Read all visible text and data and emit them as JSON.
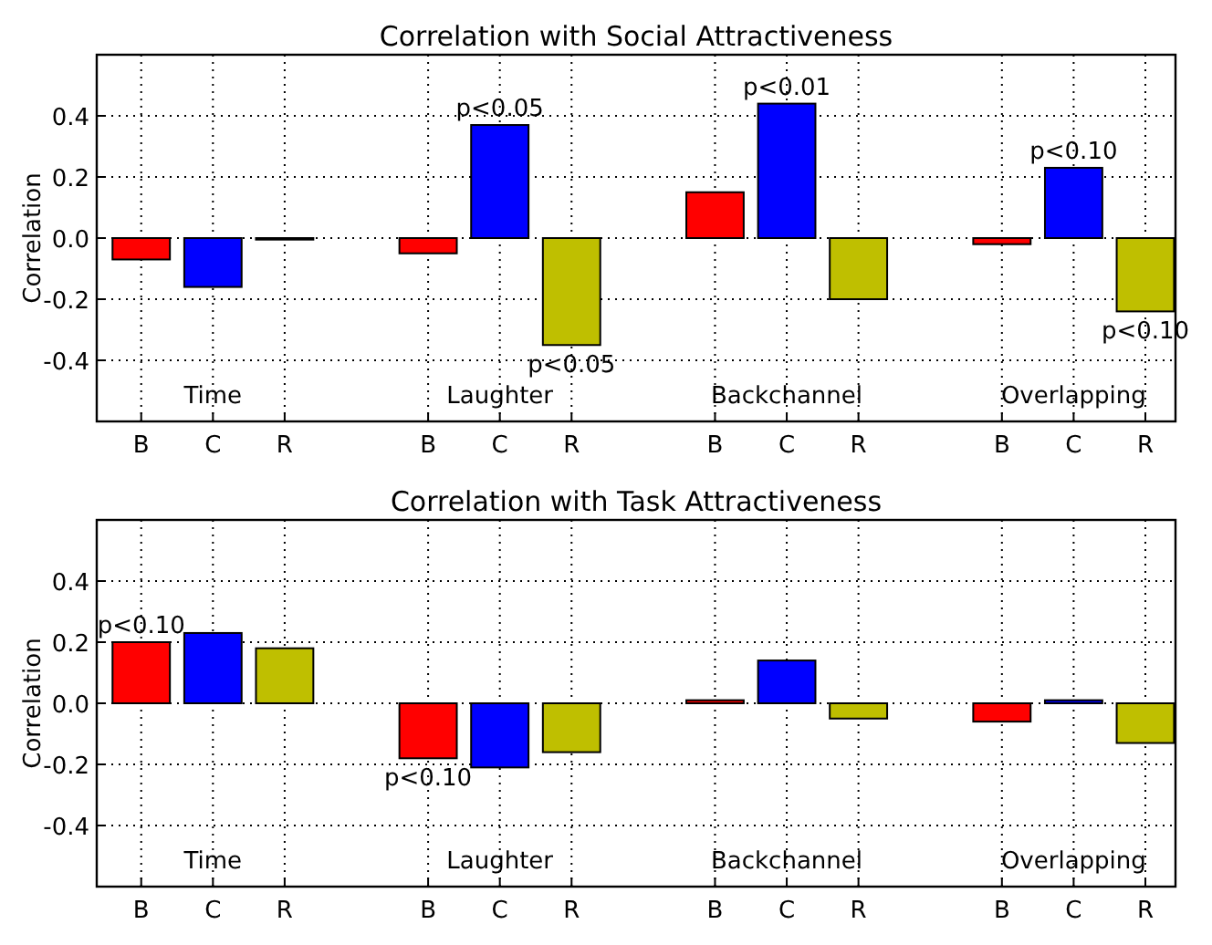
{
  "chart_data": [
    {
      "type": "bar",
      "title": "Correlation with Social Attractiveness",
      "ylabel": "Correlation",
      "categories": [
        "B",
        "C",
        "R",
        null,
        "B",
        "C",
        "R",
        null,
        "B",
        "C",
        "R",
        null,
        "B",
        "C",
        "R"
      ],
      "values": [
        -0.07,
        -0.16,
        -0.005,
        null,
        -0.05,
        0.37,
        -0.35,
        null,
        0.15,
        0.44,
        -0.2,
        null,
        -0.02,
        0.23,
        -0.24
      ],
      "colors": [
        "#ff0000",
        "#0000ff",
        "#bfbf00",
        null,
        "#ff0000",
        "#0000ff",
        "#bfbf00",
        null,
        "#ff0000",
        "#0000ff",
        "#bfbf00",
        null,
        "#ff0000",
        "#0000ff",
        "#bfbf00"
      ],
      "value_labels": [
        null,
        null,
        null,
        null,
        null,
        "p<0.05",
        "p<0.05",
        null,
        null,
        "p<0.01",
        null,
        null,
        null,
        "p<0.10",
        "p<0.10"
      ],
      "annotations": [
        "Time",
        "Laughter",
        "Backchannel",
        "Overlapping"
      ],
      "ylim": [
        -0.6,
        0.6
      ],
      "yticks": [
        -0.4,
        -0.2,
        {
          "value": 0,
          "label": "0.0"
        },
        0.2,
        0.4
      ],
      "grid": true
    },
    {
      "type": "bar",
      "title": "Correlation with Task Attractiveness",
      "ylabel": "Correlation",
      "categories": [
        "B",
        "C",
        "R",
        null,
        "B",
        "C",
        "R",
        null,
        "B",
        "C",
        "R",
        null,
        "B",
        "C",
        "R"
      ],
      "values": [
        0.2,
        0.23,
        0.18,
        null,
        -0.18,
        -0.21,
        -0.16,
        null,
        0.01,
        0.14,
        -0.05,
        null,
        -0.06,
        0.01,
        -0.13
      ],
      "colors": [
        "#ff0000",
        "#0000ff",
        "#bfbf00",
        null,
        "#ff0000",
        "#0000ff",
        "#bfbf00",
        null,
        "#ff0000",
        "#0000ff",
        "#bfbf00",
        null,
        "#ff0000",
        "#0000ff",
        "#bfbf00"
      ],
      "value_labels": [
        "p<0.10",
        null,
        null,
        null,
        "p<0.10",
        null,
        null,
        null,
        null,
        null,
        null,
        null,
        null,
        null,
        null
      ],
      "annotations": [
        "Time",
        "Laughter",
        "Backchannel",
        "Overlapping"
      ],
      "ylim": [
        -0.6,
        0.6
      ],
      "yticks": [
        -0.4,
        -0.2,
        {
          "value": 0,
          "label": "0.0"
        },
        0.2,
        0.4
      ],
      "grid": true
    }
  ]
}
